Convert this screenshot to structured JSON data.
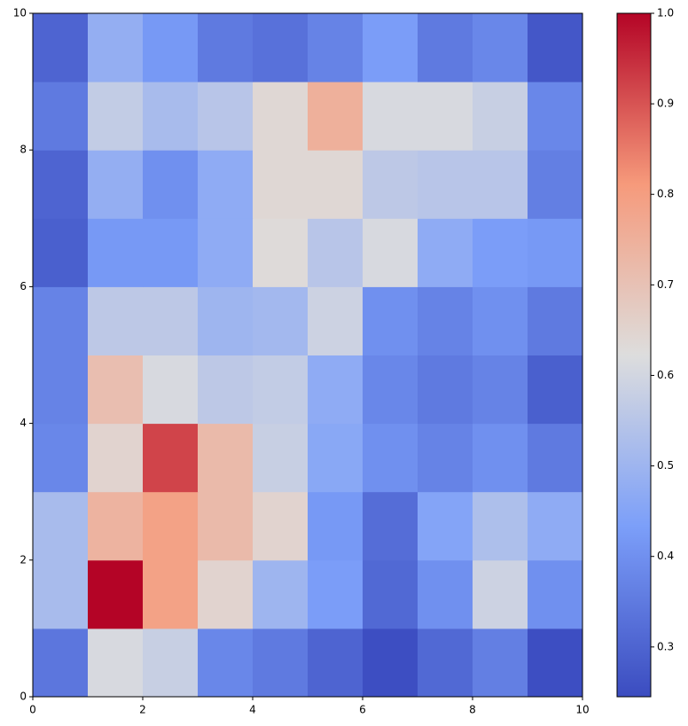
{
  "chart_data": {
    "type": "heatmap",
    "colormap": "coolwarm",
    "xlim": [
      0,
      10
    ],
    "ylim": [
      0,
      10
    ],
    "xticks": [
      0,
      2,
      4,
      6,
      8,
      10
    ],
    "yticks": [
      0,
      2,
      4,
      6,
      8,
      10
    ],
    "z": [
      [
        0.34,
        0.61,
        0.58,
        0.38,
        0.35,
        0.3,
        0.25,
        0.31,
        0.36,
        0.25
      ],
      [
        0.52,
        1.0,
        0.79,
        0.65,
        0.5,
        0.43,
        0.31,
        0.4,
        0.59,
        0.4
      ],
      [
        0.52,
        0.74,
        0.79,
        0.72,
        0.65,
        0.42,
        0.32,
        0.45,
        0.53,
        0.47
      ],
      [
        0.38,
        0.65,
        0.92,
        0.72,
        0.58,
        0.46,
        0.4,
        0.37,
        0.4,
        0.35
      ],
      [
        0.37,
        0.71,
        0.61,
        0.56,
        0.57,
        0.47,
        0.38,
        0.35,
        0.37,
        0.29
      ],
      [
        0.37,
        0.56,
        0.56,
        0.5,
        0.51,
        0.59,
        0.4,
        0.37,
        0.4,
        0.35
      ],
      [
        0.29,
        0.42,
        0.42,
        0.47,
        0.63,
        0.55,
        0.61,
        0.47,
        0.43,
        0.42
      ],
      [
        0.3,
        0.48,
        0.4,
        0.47,
        0.64,
        0.64,
        0.56,
        0.55,
        0.55,
        0.36
      ],
      [
        0.35,
        0.57,
        0.52,
        0.55,
        0.64,
        0.75,
        0.61,
        0.61,
        0.58,
        0.38
      ],
      [
        0.3,
        0.48,
        0.42,
        0.35,
        0.33,
        0.37,
        0.43,
        0.35,
        0.38,
        0.27
      ]
    ],
    "clim": [
      0.245,
      1.0
    ],
    "colorbar_ticks": [
      0.3,
      0.4,
      0.5,
      0.6,
      0.7,
      0.8,
      0.9,
      {
        "value": 1.0,
        "label": "1.0"
      }
    ]
  }
}
